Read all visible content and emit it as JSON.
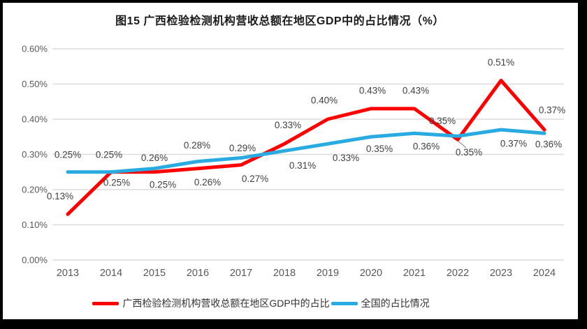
{
  "title": "图15 广西检验检测机构营收总额在地区GDP中的占比情况（%）",
  "chart_data": {
    "type": "line",
    "categories": [
      "2013",
      "2014",
      "2015",
      "2016",
      "2017",
      "2018",
      "2019",
      "2020",
      "2021",
      "2022",
      "2023",
      "2024"
    ],
    "series": [
      {
        "name": "广西检验检测机构营收总额在地区GDP中的占比",
        "color": "#FF0000",
        "values": [
          0.13,
          0.25,
          0.25,
          0.26,
          0.27,
          0.33,
          0.4,
          0.43,
          0.43,
          0.35,
          0.51,
          0.37
        ],
        "labels": [
          "0.13%",
          "0.25%",
          "0.25%",
          "0.26%",
          "0.27%",
          "0.33%",
          "0.40%",
          "0.43%",
          "0.43%",
          "0.35%",
          "0.51%",
          "0.37%"
        ]
      },
      {
        "name": "全国的占比情况",
        "color": "#29ABE2",
        "values": [
          0.25,
          0.25,
          0.26,
          0.28,
          0.29,
          0.31,
          0.33,
          0.35,
          0.36,
          0.35,
          0.37,
          0.36
        ],
        "labels": [
          "0.25%",
          "0.25%",
          "0.26%",
          "0.28%",
          "0.29%",
          "0.31%",
          "0.33%",
          "0.35%",
          "0.36%",
          "0.35%",
          "0.37%",
          "0.36%"
        ]
      }
    ],
    "xlabel": "",
    "ylabel": "",
    "ylim": [
      0,
      0.6
    ],
    "y_ticks": [
      "0.00%",
      "0.10%",
      "0.20%",
      "0.30%",
      "0.40%",
      "0.50%",
      "0.60%"
    ],
    "grid": true,
    "legend_position": "bottom"
  },
  "colors": {
    "series_guangxi": "#FF0000",
    "series_national": "#29ABE2",
    "gridline": "#DCDCDC",
    "axis_text": "#595959",
    "data_label_text": "#404040",
    "leader_line": "#A6A6A6",
    "frame": "#000000",
    "background": "#FFFFFF"
  }
}
